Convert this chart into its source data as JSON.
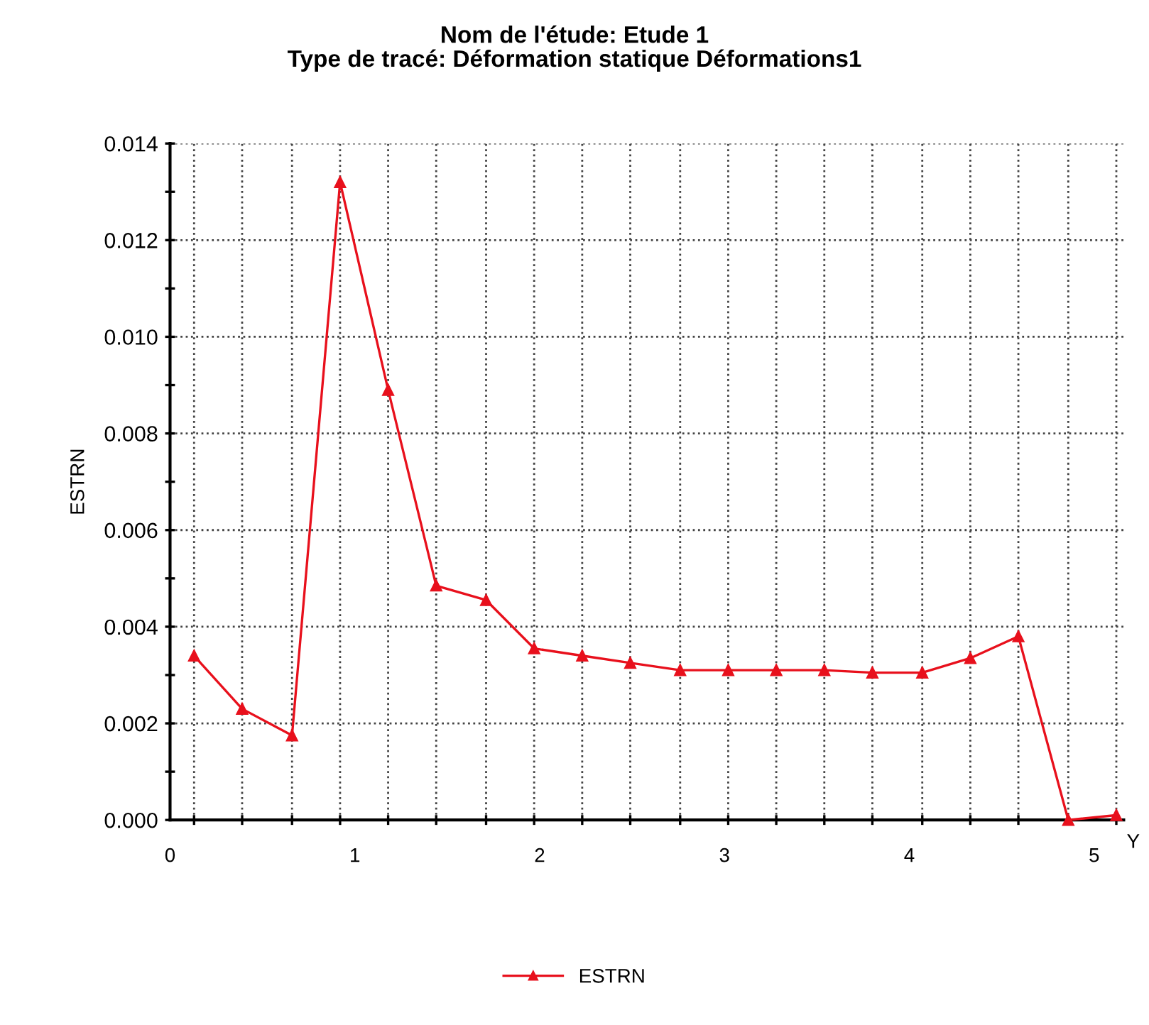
{
  "chart_data": {
    "type": "line",
    "title": "Nom de l'étude: Etude 1\nType de tracé: Déformation statique Déformations1",
    "xlabel": "Y",
    "ylabel": "ESTRN",
    "x": [
      0.13,
      0.39,
      0.66,
      0.92,
      1.18,
      1.44,
      1.71,
      1.97,
      2.23,
      2.49,
      2.76,
      3.02,
      3.28,
      3.54,
      3.8,
      4.07,
      4.33,
      4.59,
      4.86,
      5.12
    ],
    "series": [
      {
        "name": "ESTRN",
        "color": "#e8101c",
        "values": [
          0.0034,
          0.0023,
          0.00175,
          0.0132,
          0.0089,
          0.00485,
          0.00455,
          0.00355,
          0.0034,
          0.00325,
          0.0031,
          0.0031,
          0.0031,
          0.0031,
          0.00305,
          0.00305,
          0.00335,
          0.0038,
          0.0,
          0.0001
        ]
      }
    ],
    "xlim": [
      0,
      5.16
    ],
    "xticks": [
      0,
      1,
      2,
      3,
      4,
      5,
      {
        "value": 0.13,
        "label": null
      },
      {
        "value": 0.39,
        "label": null
      },
      {
        "value": 0.66,
        "label": null
      },
      {
        "value": 0.92,
        "label": null
      },
      {
        "value": 1.18,
        "label": null
      },
      {
        "value": 1.44,
        "label": null
      },
      {
        "value": 1.71,
        "label": null
      },
      {
        "value": 1.97,
        "label": null
      },
      {
        "value": 2.23,
        "label": null
      },
      {
        "value": 2.49,
        "label": null
      },
      {
        "value": 2.76,
        "label": null
      },
      {
        "value": 3.02,
        "label": null
      },
      {
        "value": 3.28,
        "label": null
      },
      {
        "value": 3.54,
        "label": null
      },
      {
        "value": 3.8,
        "label": null
      },
      {
        "value": 4.07,
        "label": null
      },
      {
        "value": 4.33,
        "label": null
      },
      {
        "value": 4.59,
        "label": null
      },
      {
        "value": 4.86,
        "label": null
      },
      {
        "value": 5.12,
        "label": null
      }
    ],
    "ylim": [
      0,
      0.014
    ],
    "yticks": [
      {
        "value": 0,
        "label": "0.000"
      },
      {
        "value": 0.002,
        "label": "0.002"
      },
      {
        "value": 0.004,
        "label": "0.004"
      },
      {
        "value": 0.006,
        "label": "0.006"
      },
      {
        "value": 0.008,
        "label": "0.008"
      },
      {
        "value": 0.01,
        "label": "0.010"
      },
      {
        "value": 0.012,
        "label": "0.012"
      },
      {
        "value": 0.014,
        "label": "0.014"
      },
      {
        "value": 0.001,
        "label": null
      },
      {
        "value": 0.003,
        "label": null
      },
      {
        "value": 0.005,
        "label": null
      },
      {
        "value": 0.007,
        "label": null
      },
      {
        "value": 0.009,
        "label": null
      },
      {
        "value": 0.011,
        "label": null
      },
      {
        "value": 0.013,
        "label": null
      }
    ],
    "grid": true,
    "legend": "bottom",
    "marker": "triangle",
    "line_style": "solid"
  }
}
